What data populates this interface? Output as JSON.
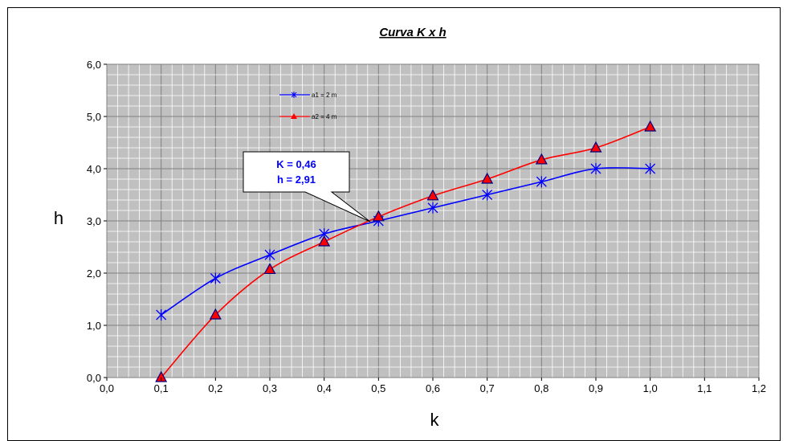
{
  "chart_data": {
    "type": "line",
    "title": "Curva K x  h",
    "xlabel": "k",
    "ylabel": "h",
    "xlim": [
      0,
      1.2
    ],
    "ylim": [
      0,
      6
    ],
    "x_ticks": [
      "0,0",
      "0,1",
      "0,2",
      "0,3",
      "0,4",
      "0,5",
      "0,6",
      "0,7",
      "0,8",
      "0,9",
      "1,0",
      "1,1",
      "1,2"
    ],
    "y_ticks": [
      "0,0",
      "1,0",
      "2,0",
      "3,0",
      "4,0",
      "5,0",
      "6,0"
    ],
    "grid": true,
    "legend_position": "top-left",
    "series": [
      {
        "name": "a1 = 2 m",
        "color": "#0000ff",
        "marker": "asterisk",
        "x": [
          0.1,
          0.2,
          0.3,
          0.4,
          0.5,
          0.6,
          0.7,
          0.8,
          0.9,
          1.0
        ],
        "y": [
          1.2,
          1.9,
          2.35,
          2.75,
          3.0,
          3.25,
          3.5,
          3.75,
          4.0,
          4.0
        ]
      },
      {
        "name": "a2 = 4 m",
        "color": "#ff0000",
        "marker": "triangle",
        "x": [
          0.1,
          0.2,
          0.3,
          0.4,
          0.5,
          0.6,
          0.7,
          0.8,
          0.9,
          1.0
        ],
        "y": [
          0.0,
          1.2,
          2.07,
          2.6,
          3.08,
          3.48,
          3.8,
          4.17,
          4.4,
          4.8
        ]
      }
    ],
    "annotation": {
      "lines": [
        "K = 0,46",
        "h = 2,91"
      ],
      "x": 0.46,
      "y": 2.91
    }
  }
}
